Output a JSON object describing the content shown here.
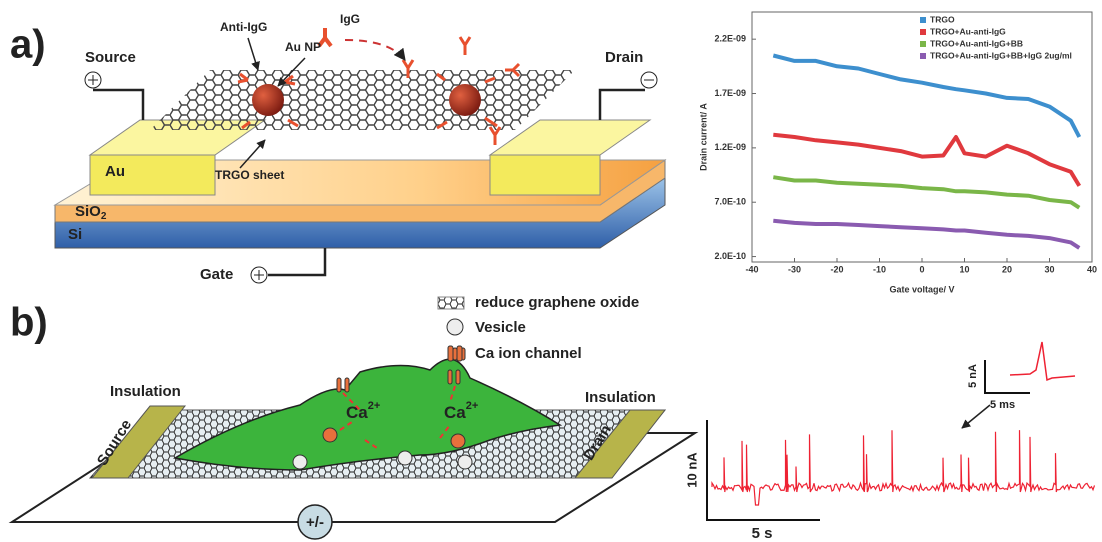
{
  "chart_data": {
    "type": "line",
    "x_label": "Gate voltage/ V",
    "y_label": "Drain current/ A",
    "x": [
      -35,
      -30,
      -25,
      -20,
      -15,
      -10,
      -5,
      0,
      5,
      8,
      10,
      15,
      20,
      25,
      30,
      35,
      37
    ],
    "series": [
      {
        "name": "TRGO",
        "color": "#3d8fce",
        "values": [
          2.05e-09,
          2e-09,
          2e-09,
          1.95e-09,
          1.93e-09,
          1.88e-09,
          1.83e-09,
          1.8e-09,
          1.76e-09,
          1.74e-09,
          1.73e-09,
          1.7e-09,
          1.66e-09,
          1.65e-09,
          1.58e-09,
          1.45e-09,
          1.3e-09
        ]
      },
      {
        "name": "TRGO+Au-anti-IgG",
        "color": "#e0393e",
        "values": [
          1.32e-09,
          1.3e-09,
          1.27e-09,
          1.25e-09,
          1.23e-09,
          1.2e-09,
          1.17e-09,
          1.12e-09,
          1.13e-09,
          1.3e-09,
          1.15e-09,
          1.12e-09,
          1.22e-09,
          1.15e-09,
          1.05e-09,
          9.8e-10,
          8.5e-10
        ]
      },
      {
        "name": "TRGO+Au-anti-IgG+BB",
        "color": "#7ab648",
        "values": [
          9.3e-10,
          9e-10,
          9e-10,
          8.8e-10,
          8.7e-10,
          8.6e-10,
          8.5e-10,
          8.3e-10,
          8.2e-10,
          8e-10,
          8e-10,
          7.9e-10,
          7.7e-10,
          7.6e-10,
          7.2e-10,
          7e-10,
          6.5e-10
        ]
      },
      {
        "name": "TRGO+Au-anti-IgG+BB+IgG 2ug/ml",
        "color": "#8a5bb0",
        "values": [
          5.3e-10,
          5.1e-10,
          5e-10,
          5e-10,
          4.9e-10,
          4.8e-10,
          4.7e-10,
          4.6e-10,
          4.5e-10,
          4.4e-10,
          4.4e-10,
          4.2e-10,
          4e-10,
          3.9e-10,
          3.7e-10,
          3.3e-10,
          2.8e-10
        ]
      }
    ],
    "xlim": [
      -40,
      40
    ],
    "xticks": [
      -40,
      -30,
      -20,
      -10,
      0,
      10,
      20,
      30,
      40
    ],
    "ylim": [
      1.5e-10,
      2.45e-09
    ],
    "yticks": [
      {
        "value": 2e-10,
        "label": "2.0E-10"
      },
      {
        "value": 7e-10,
        "label": "7.0E-10"
      },
      {
        "value": 1.2e-09,
        "label": "1.2E-09"
      },
      {
        "value": 1.7e-09,
        "label": "1.7E-09"
      },
      {
        "value": 2.2e-09,
        "label": "2.2E-09"
      }
    ],
    "grid": false,
    "legend": "upper right"
  },
  "panel_a": {
    "label": "a)",
    "source": "Source",
    "drain": "Drain",
    "anti_igg": "Anti-IgG",
    "au_np": "Au NP",
    "igg": "IgG",
    "au": "Au",
    "trgo_sheet": "TRGO sheet",
    "sio2": {
      "label": "SiO",
      "subscript": "2"
    },
    "si": "Si",
    "gate": "Gate"
  },
  "panel_b": {
    "label": "b)",
    "legend": [
      "reduce graphene oxide",
      "Vesicle",
      "Ca ion channel"
    ],
    "insulation_left": "Insulation",
    "insulation_right": "Insulation",
    "source": "Source",
    "drain": "Drain",
    "ca_left": {
      "label": "Ca",
      "superscript": "2+"
    },
    "ca_right": {
      "label": "Ca",
      "superscript": "2+"
    },
    "bias": "+/-",
    "inset_y_scale": "5 nA",
    "inset_x_scale": "5 ms",
    "y_scale": "10 nA",
    "x_scale": "5 s"
  }
}
